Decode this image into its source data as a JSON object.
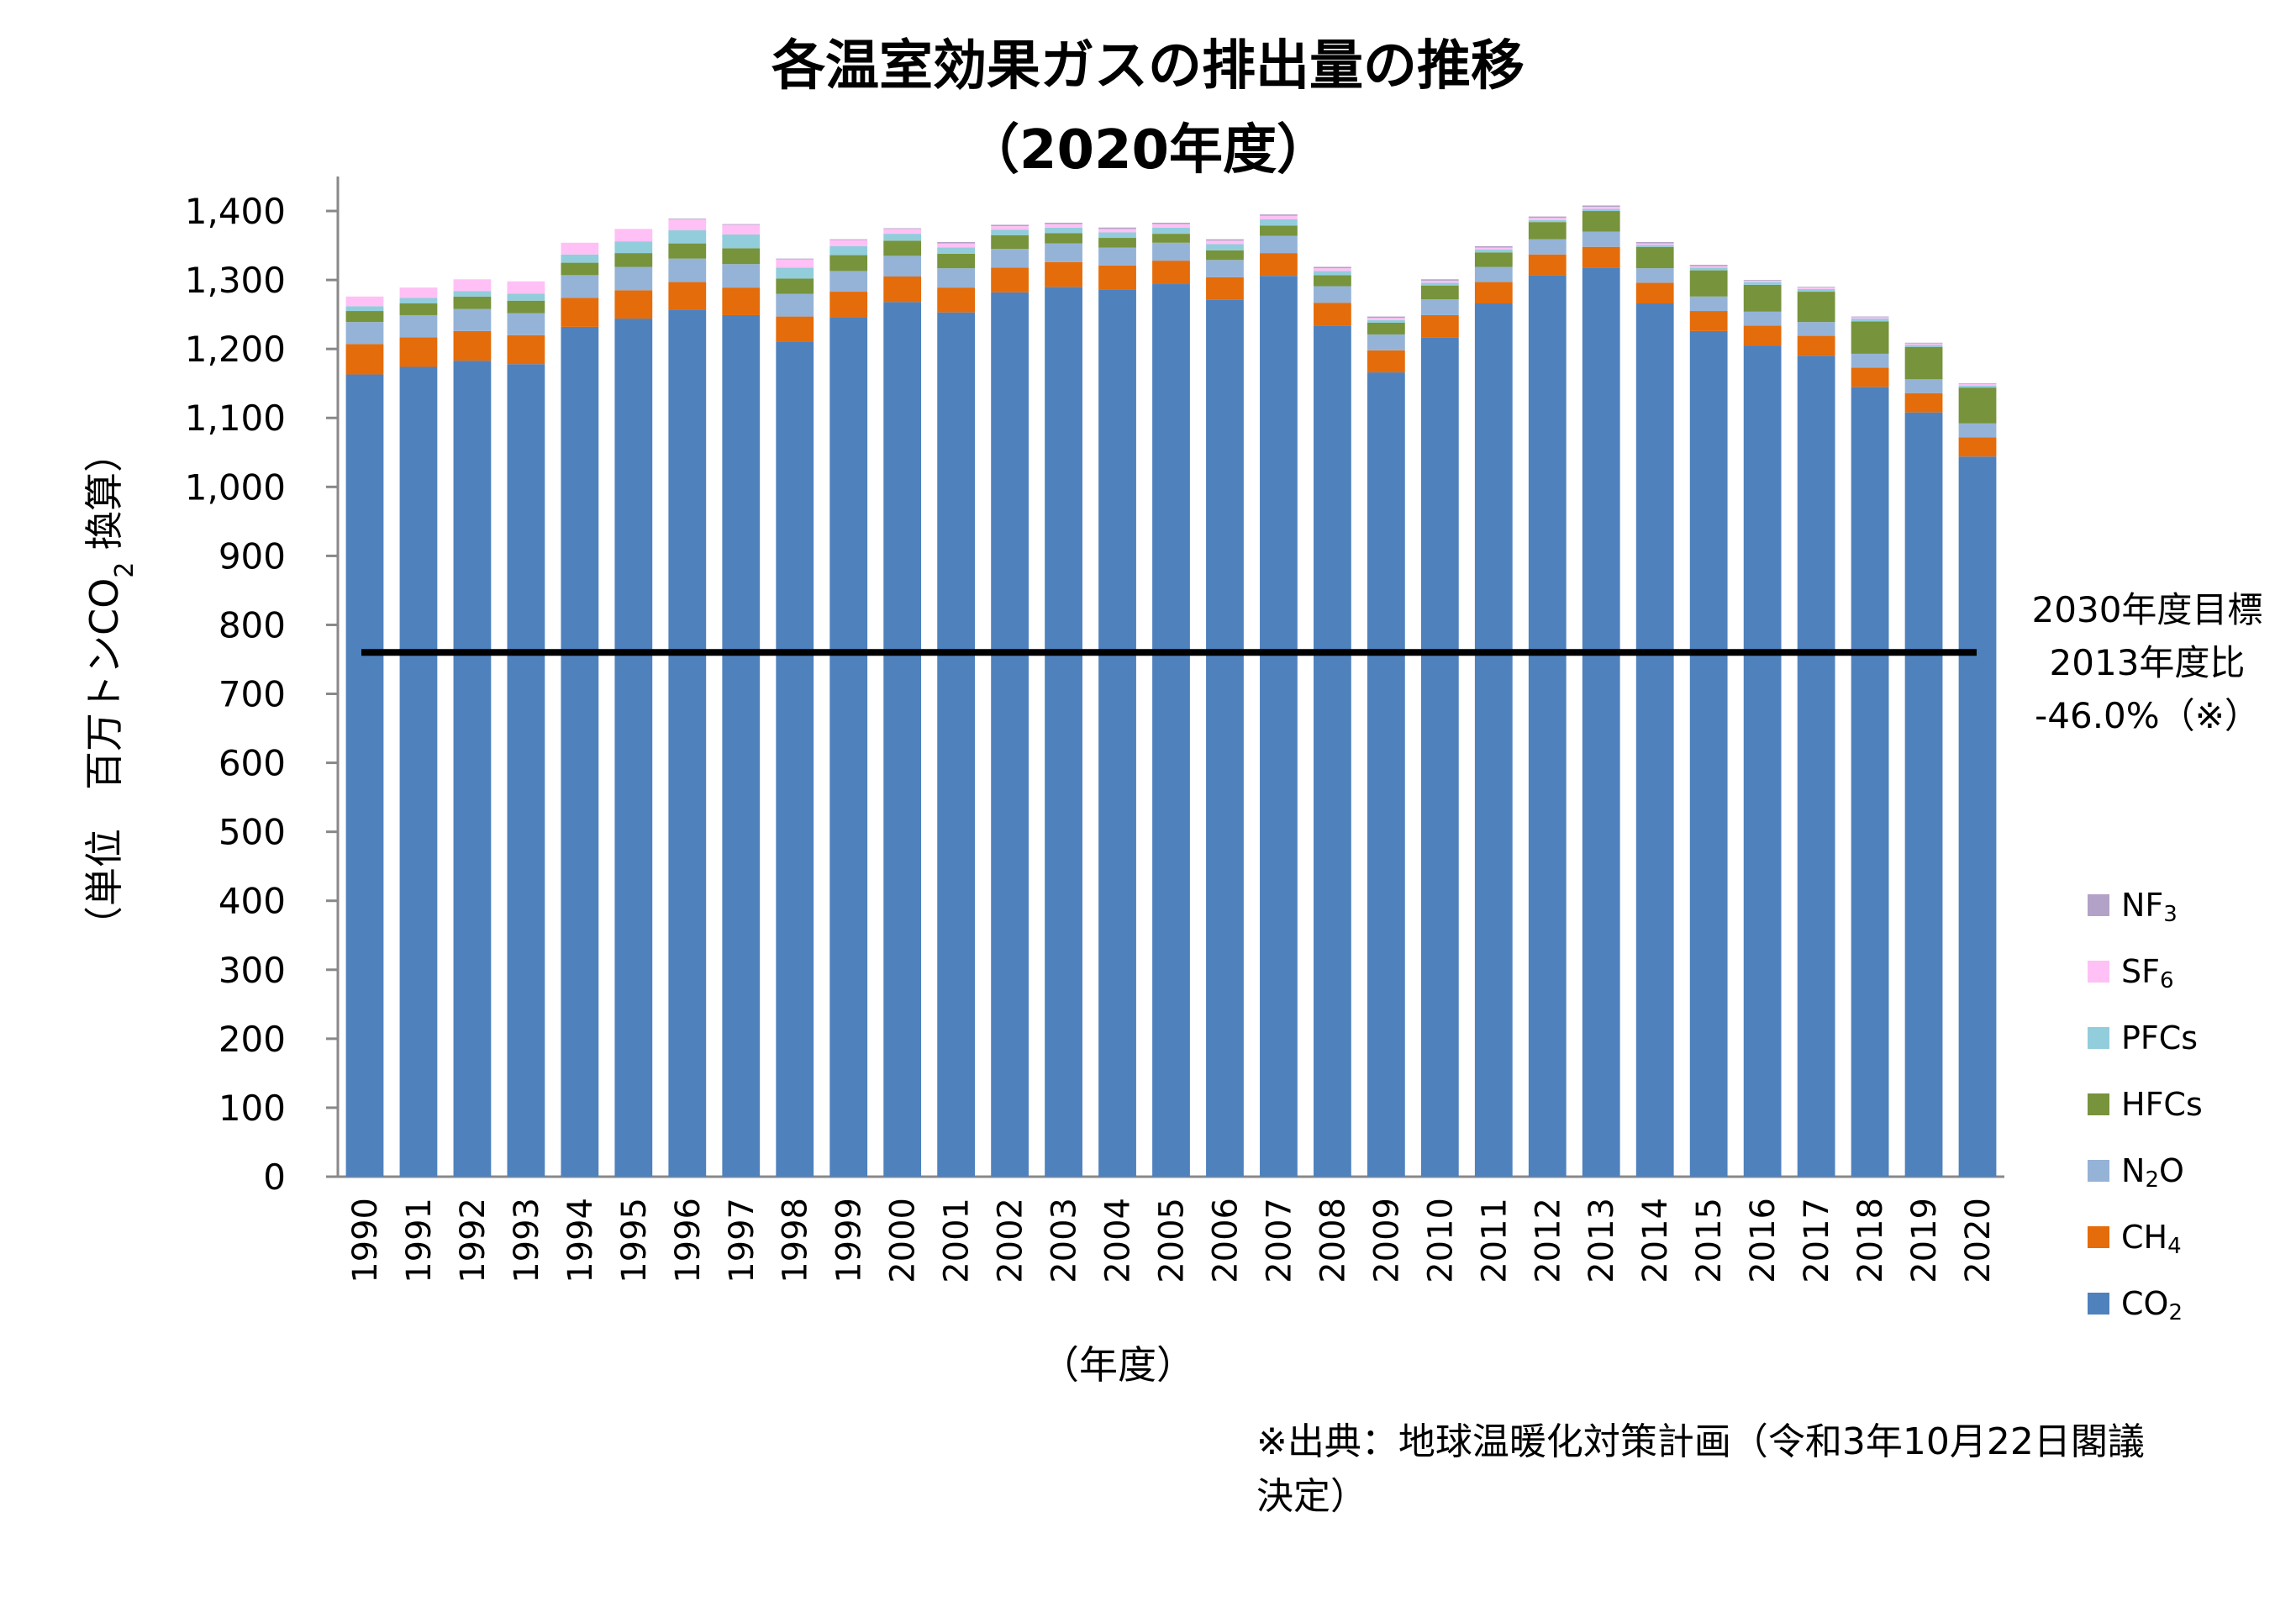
{
  "chart_data": {
    "type": "bar",
    "stacked": true,
    "title": "各温室効果ガスの排出量の推移",
    "subtitle": "（2020年度）",
    "xlabel": "（年度）",
    "ylabel": "（単位　百万トンCO",
    "ylabel_sub": "2",
    "ylabel_tail": " 換算）",
    "ylim": [
      0,
      1450
    ],
    "yticks": [
      0,
      100,
      200,
      300,
      400,
      500,
      600,
      700,
      800,
      900,
      1000,
      1100,
      1200,
      1300,
      1400
    ],
    "ytick_labels": [
      "0",
      "100",
      "200",
      "300",
      "400",
      "500",
      "600",
      "700",
      "800",
      "900",
      "1,000",
      "1,100",
      "1,200",
      "1,300",
      "1,400"
    ],
    "categories": [
      "1990",
      "1991",
      "1992",
      "1993",
      "1994",
      "1995",
      "1996",
      "1997",
      "1998",
      "1999",
      "2000",
      "2001",
      "2002",
      "2003",
      "2004",
      "2005",
      "2006",
      "2007",
      "2008",
      "2009",
      "2010",
      "2011",
      "2012",
      "2013",
      "2014",
      "2015",
      "2016",
      "2017",
      "2018",
      "2019",
      "2020"
    ],
    "series": [
      {
        "name": "CO",
        "sub": "2",
        "color": "#4f81bd",
        "values": [
          1163,
          1174,
          1183,
          1178,
          1232,
          1244,
          1257,
          1249,
          1210,
          1246,
          1268,
          1253,
          1282,
          1290,
          1286,
          1294,
          1271,
          1306,
          1234,
          1166,
          1217,
          1266,
          1307,
          1318,
          1266,
          1226,
          1205,
          1190,
          1145,
          1108,
          1044
        ]
      },
      {
        "name": "CH",
        "sub": "4",
        "color": "#e46c0a",
        "values": [
          44,
          43,
          43,
          42,
          42,
          41,
          40,
          40,
          37,
          37,
          37,
          36,
          36,
          36,
          35,
          34,
          33,
          33,
          33,
          32,
          32,
          31,
          30,
          30,
          30,
          29,
          29,
          29,
          28,
          28,
          28
        ]
      },
      {
        "name": "N",
        "sub": "2",
        "tail": "O",
        "color": "#95b3d7",
        "values": [
          32,
          32,
          32,
          32,
          33,
          34,
          34,
          34,
          33,
          30,
          30,
          28,
          27,
          27,
          26,
          26,
          25,
          25,
          24,
          23,
          23,
          22,
          22,
          22,
          21,
          21,
          20,
          20,
          20,
          20,
          20
        ]
      },
      {
        "name": "HFCs",
        "color": "#77933c",
        "values": [
          16,
          17,
          18,
          18,
          18,
          20,
          22,
          23,
          22,
          23,
          22,
          21,
          20,
          15,
          14,
          13,
          14,
          15,
          16,
          17,
          20,
          21,
          25,
          30,
          31,
          38,
          39,
          44,
          47,
          47,
          52
        ]
      },
      {
        "name": "PFCs",
        "color": "#92cddc",
        "values": [
          7,
          8,
          8,
          10,
          12,
          17,
          19,
          20,
          16,
          13,
          10,
          9,
          8,
          8,
          8,
          9,
          9,
          9,
          6,
          4,
          4,
          4,
          3,
          3,
          3,
          4,
          4,
          4,
          4,
          3,
          3
        ]
      },
      {
        "name": "SF",
        "sub": "6",
        "color": "#ffc0f5",
        "values": [
          14,
          15,
          17,
          18,
          17,
          18,
          16,
          14,
          12,
          9,
          7,
          6,
          5,
          5,
          5,
          5,
          5,
          5,
          4,
          3,
          3,
          3,
          3,
          3,
          2,
          2,
          2,
          2,
          2,
          2,
          2
        ]
      },
      {
        "name": "NF",
        "sub": "3",
        "color": "#b3a2c7",
        "values": [
          0,
          0,
          0,
          0,
          0,
          0,
          1,
          1,
          1,
          1,
          1,
          2,
          2,
          2,
          2,
          2,
          2,
          2,
          2,
          2,
          2,
          2,
          2,
          2,
          2,
          2,
          1,
          1,
          1,
          1,
          1
        ]
      }
    ],
    "target_line": {
      "value": 760,
      "label_lines": [
        "2030年度目標",
        "2013年度比",
        "-46.0%（※）"
      ]
    },
    "legend_position": "right"
  },
  "source_note": {
    "line1": "※出典：地球温暖化対策計画（令和3年10月22日閣議",
    "line2": "決定）"
  }
}
